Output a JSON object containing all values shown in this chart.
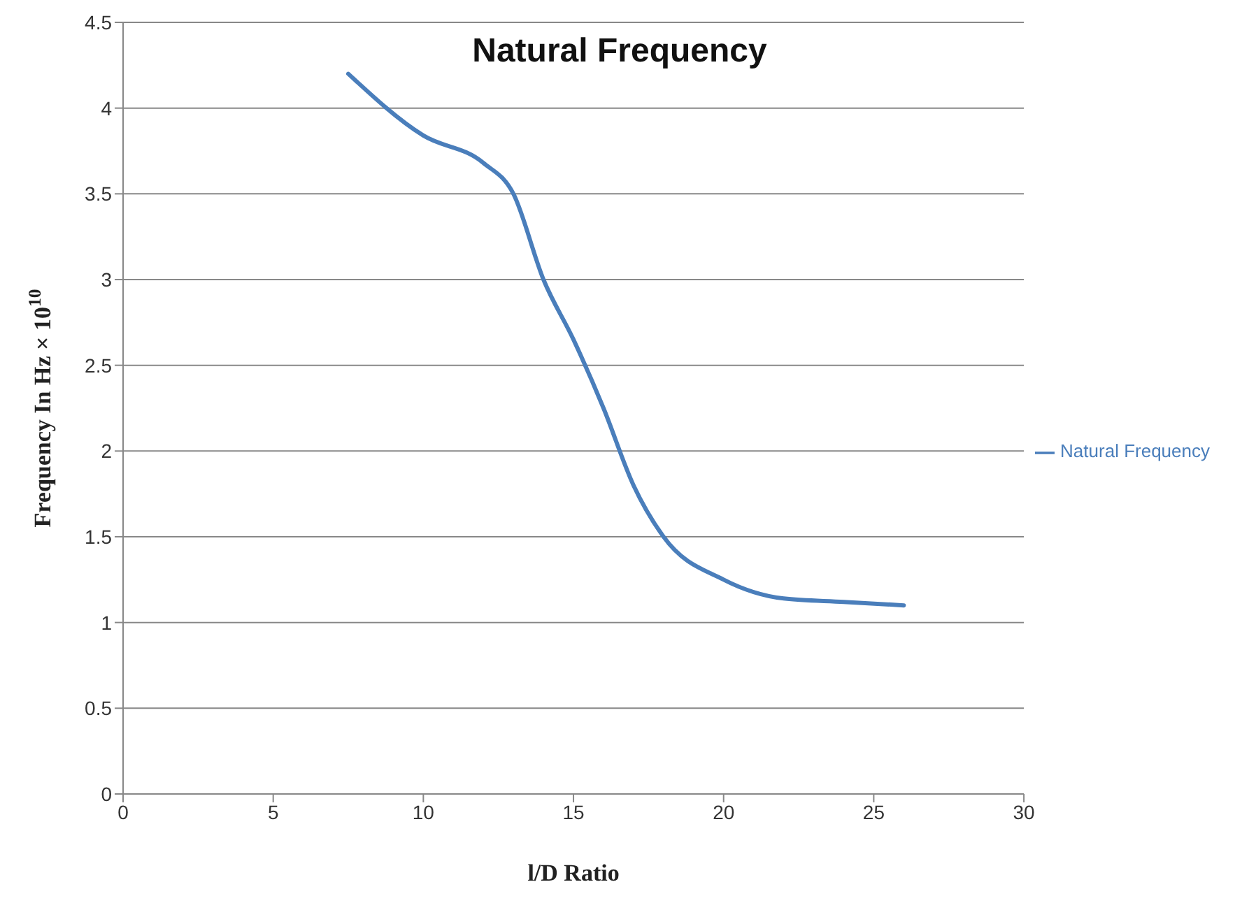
{
  "chart_data": {
    "type": "line",
    "title": "Natural Frequency",
    "xlabel": "l/D Ratio",
    "ylabel": "Frequency  In Hz × 10$^{10}$",
    "x": [
      7.5,
      10,
      12,
      13,
      14,
      15,
      16,
      17,
      18,
      20,
      22,
      24,
      26
    ],
    "series": [
      {
        "name": "Natural Frequency",
        "color": "#4a7ebb",
        "values": [
          4.2,
          3.84,
          3.68,
          3.5,
          3.0,
          2.65,
          2.25,
          1.8,
          1.5,
          1.25,
          1.14,
          1.12,
          1.1
        ]
      }
    ],
    "xlim": [
      0,
      30
    ],
    "xticks": [
      0,
      5,
      10,
      15,
      20,
      25,
      30
    ],
    "ylim": [
      0,
      4.5
    ],
    "yticks": [
      0,
      0.5,
      1,
      1.5,
      2,
      2.5,
      3,
      3.5,
      4,
      4.5
    ],
    "grid": "y",
    "legend": "right",
    "marker": "none",
    "line_style": "solid"
  }
}
